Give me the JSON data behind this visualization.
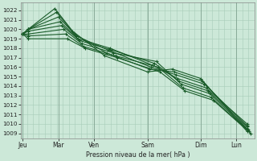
{
  "bg_color": "#cce8d8",
  "grid_color": "#a8ccb8",
  "line_color": "#1a5c2a",
  "marker_color": "#1a5c2a",
  "xlabel_text": "Pression niveau de la mer( hPa )",
  "yticks": [
    1009,
    1010,
    1011,
    1012,
    1013,
    1014,
    1015,
    1016,
    1017,
    1018,
    1019,
    1020,
    1021,
    1022
  ],
  "ylim": [
    1008.5,
    1022.8
  ],
  "x_day_labels": [
    "Jeu",
    "Mar",
    "Ven",
    "Sam",
    "Dim",
    "Lun"
  ],
  "x_day_positions": [
    0.0,
    1.0,
    2.0,
    3.5,
    5.0,
    6.0
  ],
  "xlim": [
    -0.05,
    6.5
  ],
  "num_vgrid": 40,
  "series_x": [
    [
      0.0,
      0.15,
      0.9,
      1.4,
      2.3,
      3.5,
      4.2,
      5.0,
      6.3
    ],
    [
      0.0,
      0.15,
      0.95,
      1.45,
      2.35,
      3.55,
      4.25,
      5.05,
      6.3
    ],
    [
      0.0,
      0.15,
      1.0,
      1.5,
      2.4,
      3.6,
      4.3,
      5.1,
      6.3
    ],
    [
      0.0,
      0.15,
      1.05,
      1.55,
      2.45,
      3.65,
      4.35,
      5.15,
      6.3
    ],
    [
      0.0,
      0.15,
      1.1,
      1.6,
      2.5,
      3.7,
      4.4,
      5.2,
      6.3
    ],
    [
      0.0,
      0.15,
      1.15,
      1.65,
      2.55,
      3.75,
      4.45,
      5.25,
      6.32
    ],
    [
      0.0,
      0.15,
      1.2,
      1.7,
      2.6,
      3.8,
      4.5,
      5.3,
      6.35
    ],
    [
      0.0,
      0.15,
      1.25,
      1.75,
      2.65,
      3.85,
      4.55,
      5.35,
      6.4
    ]
  ],
  "series_y": [
    [
      1019.5,
      1020.0,
      1022.2,
      1019.8,
      1017.2,
      1015.5,
      1015.8,
      1014.8,
      1009.2
    ],
    [
      1019.5,
      1020.0,
      1021.8,
      1019.5,
      1017.5,
      1015.8,
      1015.5,
      1014.5,
      1009.5
    ],
    [
      1019.5,
      1020.0,
      1021.3,
      1019.3,
      1017.8,
      1016.0,
      1015.2,
      1014.2,
      1009.8
    ],
    [
      1019.5,
      1020.0,
      1020.8,
      1019.0,
      1018.0,
      1016.2,
      1014.8,
      1013.8,
      1010.0
    ],
    [
      1019.5,
      1019.8,
      1020.4,
      1018.8,
      1017.8,
      1016.4,
      1014.5,
      1013.5,
      1009.7
    ],
    [
      1019.5,
      1019.5,
      1020.0,
      1018.5,
      1017.5,
      1016.6,
      1014.2,
      1013.2,
      1009.4
    ],
    [
      1019.5,
      1019.3,
      1019.5,
      1018.2,
      1017.2,
      1016.0,
      1013.8,
      1012.8,
      1009.2
    ],
    [
      1019.5,
      1019.0,
      1019.0,
      1018.0,
      1017.0,
      1015.5,
      1013.5,
      1012.5,
      1009.0
    ]
  ]
}
